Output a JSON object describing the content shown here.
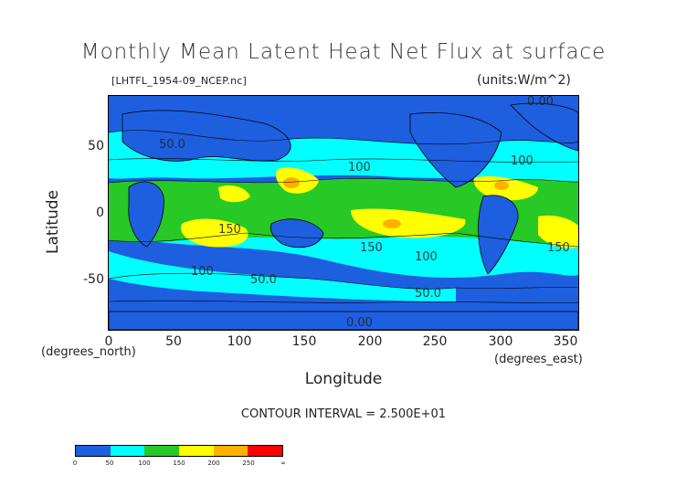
{
  "title": "Monthly Mean Latent Heat Net Flux at surface",
  "file_label": "[LHTFL_1954-09_NCEP.nc]",
  "units_label": "(units:W/m^2)",
  "y_axis": {
    "label": "Latitude",
    "unit": "(degrees_north)",
    "ticks": [
      "50",
      "0",
      "-50"
    ]
  },
  "x_axis": {
    "label": "Longitude",
    "unit": "(degrees_east)",
    "ticks": [
      "0",
      "50",
      "100",
      "150",
      "200",
      "250",
      "300",
      "350"
    ]
  },
  "contour_interval": "CONTOUR INTERVAL = 2.500E+01",
  "map": {
    "lon_range": [
      0,
      360
    ],
    "lat_range": [
      -90,
      90
    ],
    "contour_labels": [
      "0.00",
      "50.0",
      "100",
      "150",
      "100",
      "50.0",
      "0.00",
      "150",
      "100",
      "50.0",
      "100",
      "150"
    ]
  },
  "colorbar": {
    "colors": [
      "#1e5fe0",
      "#00ffff",
      "#27c927",
      "#ffff00",
      "#ffb000",
      "#ff0000"
    ],
    "labels": [
      "0",
      "50",
      "100",
      "150",
      "200",
      "250",
      "∞"
    ]
  }
}
